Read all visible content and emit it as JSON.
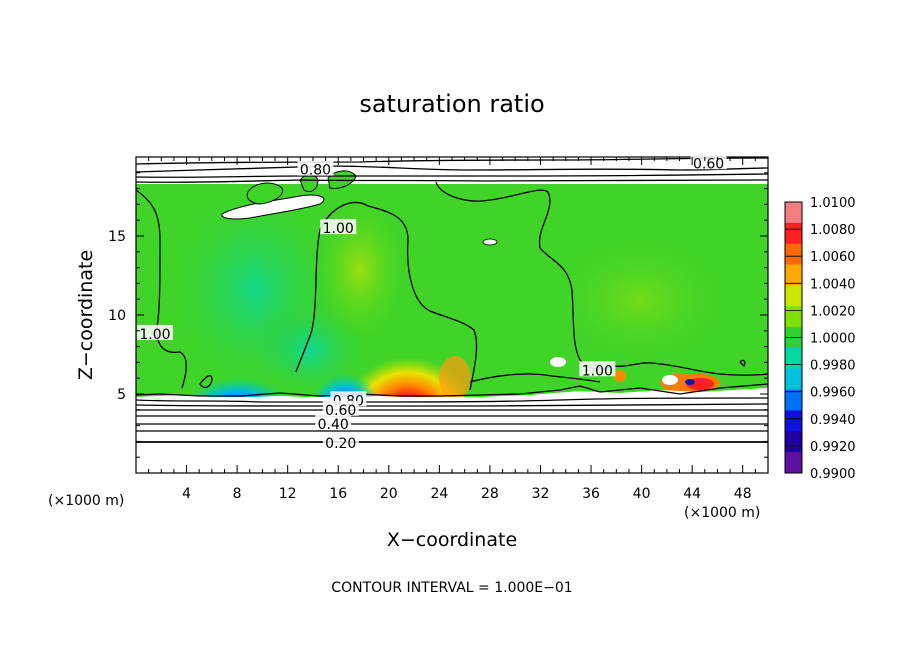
{
  "chart_data": {
    "type": "heatmap",
    "title": "saturation ratio",
    "xlabel": "X−coordinate",
    "ylabel": "Z−coordinate",
    "x_unit_left": "(×1000 m)",
    "x_unit_right": "(×1000 m)",
    "footer": "CONTOUR INTERVAL = 1.000E−01",
    "xlim": [
      0,
      50
    ],
    "ylim": [
      0,
      20
    ],
    "x_ticks": [
      4,
      8,
      12,
      16,
      20,
      24,
      28,
      32,
      36,
      40,
      44,
      48
    ],
    "x_tick_labels": [
      "4",
      "8",
      "12",
      "16",
      "20",
      "24",
      "28",
      "32",
      "36",
      "40",
      "44",
      "48"
    ],
    "y_ticks": [
      5,
      10,
      15
    ],
    "y_tick_labels": [
      "5",
      "10",
      "15"
    ],
    "colorbar": {
      "min": 0.99,
      "max": 1.01,
      "labels": [
        "1.0100",
        "1.0080",
        "1.0060",
        "1.0040",
        "1.0020",
        "1.0000",
        "0.9980",
        "0.9960",
        "0.9940",
        "0.9920",
        "0.9900"
      ],
      "colors_top_to_bottom": [
        "#f08080",
        "#ff2020",
        "#ff6a00",
        "#ffaa00",
        "#c8e600",
        "#80e000",
        "#30d030",
        "#00d8a0",
        "#00c0e0",
        "#0070ff",
        "#1010e0",
        "#2000a0",
        "#6010a0"
      ]
    },
    "contour_labels": [
      {
        "text": "0.80",
        "x": 14.2,
        "z": 19.2
      },
      {
        "text": "0.60",
        "x": 45.3,
        "z": 19.6
      },
      {
        "text": "1.00",
        "x": 16.0,
        "z": 15.5
      },
      {
        "text": "1.00",
        "x": 1.5,
        "z": 8.8
      },
      {
        "text": "1.00",
        "x": 36.5,
        "z": 6.5
      },
      {
        "text": "0.80",
        "x": 16.8,
        "z": 4.6
      },
      {
        "text": "0.60",
        "x": 16.2,
        "z": 4.0
      },
      {
        "text": "0.40",
        "x": 15.6,
        "z": 3.1
      },
      {
        "text": "0.20",
        "x": 16.2,
        "z": 1.9
      }
    ],
    "grid": false
  }
}
